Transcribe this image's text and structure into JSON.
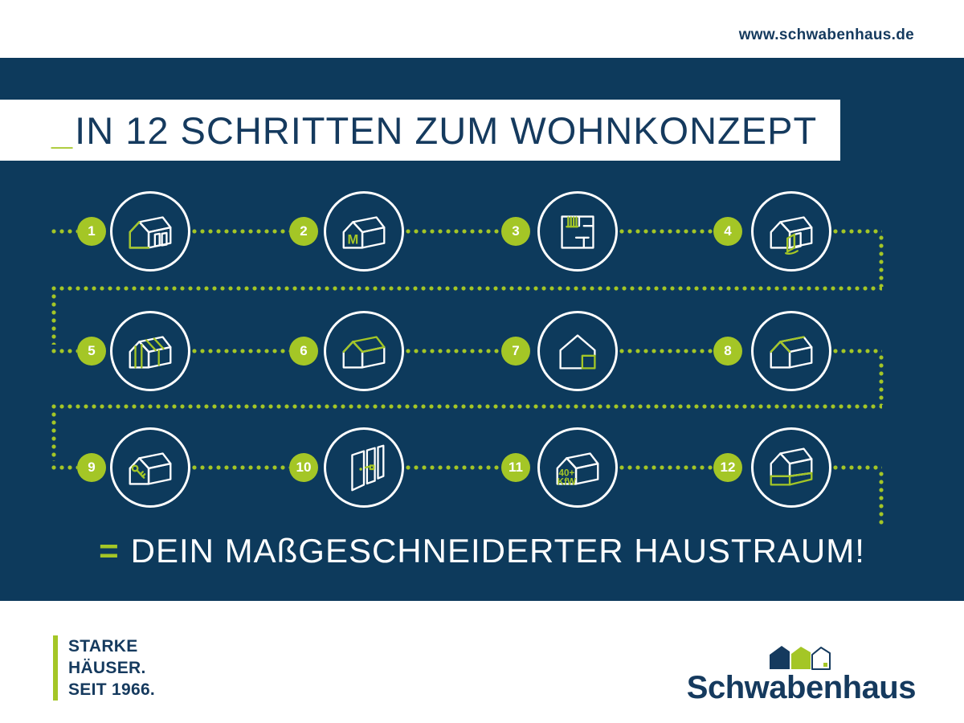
{
  "window": {
    "url_label": "www.schwabenhaus.de"
  },
  "colors": {
    "navy_background": "#0d3a5c",
    "navy_text": "#153a5e",
    "green": "#a4c626",
    "white": "#ffffff"
  },
  "title": {
    "accent": "_",
    "text": "IN 12 SCHRITTEN ZUM WOHNKONZEPT"
  },
  "steps": [
    {
      "number": "1",
      "icon": "dream-house"
    },
    {
      "number": "2",
      "icon": "model-house",
      "label": "M"
    },
    {
      "number": "3",
      "icon": "floor-plan"
    },
    {
      "number": "4",
      "icon": "entrance-house"
    },
    {
      "number": "5",
      "icon": "panel-walls-house"
    },
    {
      "number": "6",
      "icon": "roof-house"
    },
    {
      "number": "7",
      "icon": "extension-house"
    },
    {
      "number": "8",
      "icon": "roof-truss-house"
    },
    {
      "number": "9",
      "icon": "key-handover-house"
    },
    {
      "number": "10",
      "icon": "doors"
    },
    {
      "number": "11",
      "icon": "kfw-house",
      "label_lines": [
        "40+",
        "KfW"
      ]
    },
    {
      "number": "12",
      "icon": "basement-house"
    }
  ],
  "result": {
    "accent": "=",
    "text": "DEIN MAßGESCHNEIDERTER HAUSTRAUM!"
  },
  "footer": {
    "claim_lines": [
      "STARKE",
      "HÄUSER.",
      "SEIT 1966."
    ],
    "brand": "Schwabenhaus"
  }
}
